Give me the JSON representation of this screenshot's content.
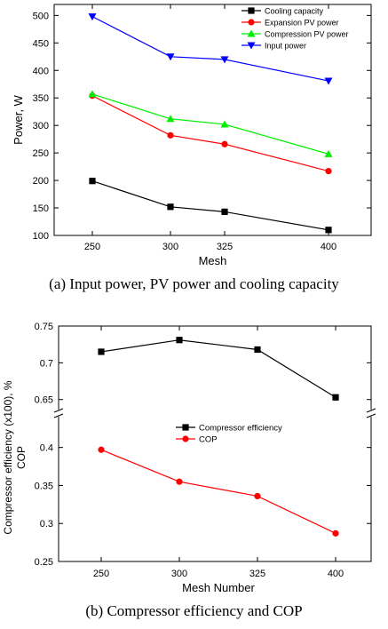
{
  "chart_data": [
    {
      "type": "line",
      "caption": "(a) Input power, PV power and cooling capacity",
      "xlabel": "Mesh",
      "ylabel": "Power, W",
      "categories": [
        "250",
        "300",
        "325",
        "400"
      ],
      "ylim": [
        100,
        520
      ],
      "yticks": [
        100,
        150,
        200,
        250,
        300,
        350,
        400,
        450,
        500
      ],
      "legend_position": "top-right",
      "series": [
        {
          "name": "Cooling capacity",
          "color": "#000000",
          "marker": "square",
          "values": [
            199,
            152,
            143,
            110
          ]
        },
        {
          "name": "Expansion PV power",
          "color": "#ff0000",
          "marker": "circle",
          "values": [
            354,
            282,
            266,
            217
          ]
        },
        {
          "name": "Compression PV power",
          "color": "#00ee00",
          "marker": "triangle-up",
          "values": [
            357,
            312,
            302,
            248
          ]
        },
        {
          "name": "Input power",
          "color": "#0000ff",
          "marker": "triangle-down",
          "values": [
            498,
            425,
            420,
            381
          ]
        }
      ]
    },
    {
      "type": "line",
      "caption": "(b) Compressor efficiency and COP",
      "xlabel": "Mesh Number",
      "ylabel": "Compressor efficiency (x100), %\nCOP",
      "categories": [
        "250",
        "300",
        "325",
        "400"
      ],
      "broken_axis": true,
      "upper_ylim": [
        0.64,
        0.75
      ],
      "upper_yticks": [
        "0.65",
        "0.7",
        "0.75"
      ],
      "lower_ylim": [
        0.25,
        0.43
      ],
      "lower_yticks": [
        "0.25",
        "0.3",
        "0.35",
        "0.4"
      ],
      "legend_position": "center-right",
      "series": [
        {
          "name": "Compressor efficiency",
          "color": "#000000",
          "marker": "square",
          "values": [
            0.715,
            0.731,
            0.718,
            0.653
          ]
        },
        {
          "name": "COP",
          "color": "#ff0000",
          "marker": "circle",
          "values": [
            0.397,
            0.355,
            0.336,
            0.287
          ]
        }
      ]
    }
  ]
}
